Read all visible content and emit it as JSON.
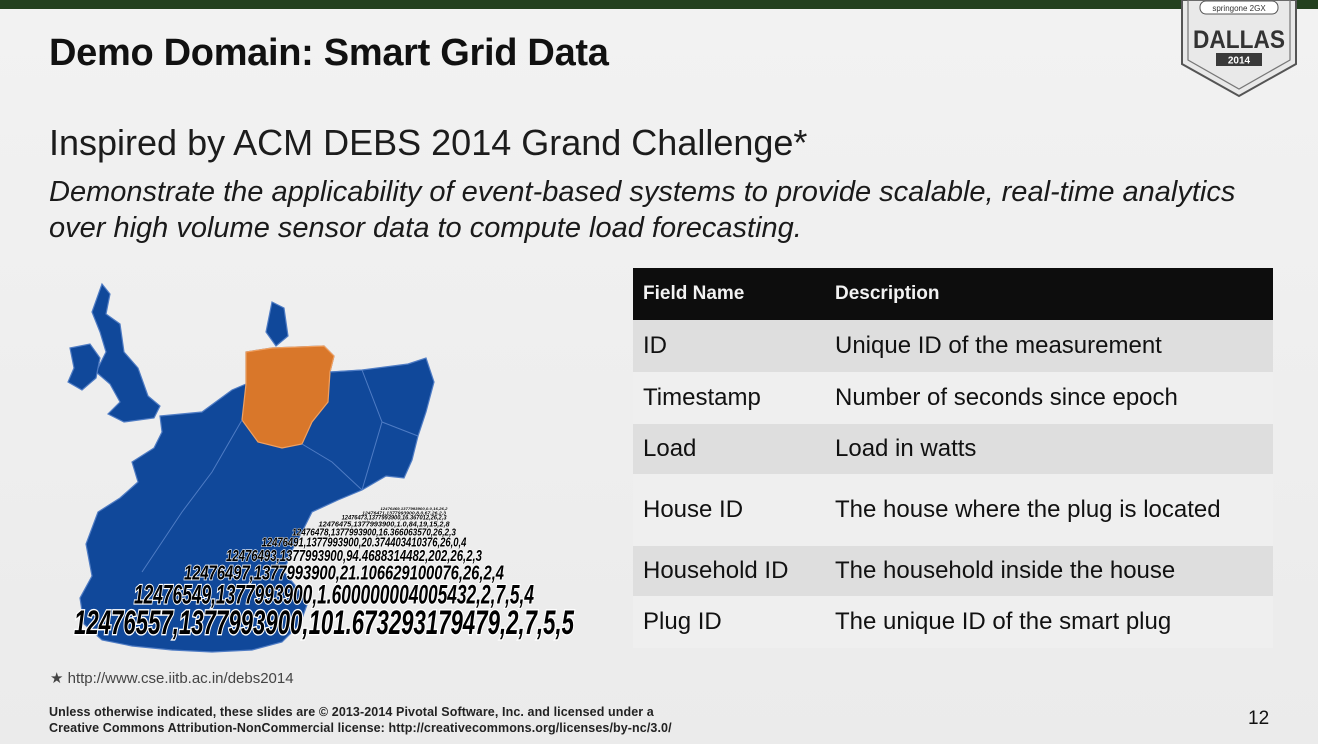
{
  "slide": {
    "title": "Demo Domain: Smart Grid Data",
    "subtitle": "Inspired by ACM DEBS 2014 Grand Challenge*",
    "description": "Demonstrate the applicability of event-based systems to provide scalable, real-time analytics over high volume sensor data to compute load forecasting.",
    "badge": {
      "top": "springone 2GX",
      "city": "DALLAS",
      "year": "2014"
    },
    "map_data_lines": [
      "12476557,1377993900,101.673293179479,2,7,5,5",
      "12476549,1377993900,1.600000004005432,2,7,5,4",
      "12476497,1377993900,21.106629100076,26,2,4",
      "12476493,1377993900,94.4688314482,202,26,2,3",
      "12476491,1377993900,20.374403410376,26,0,4",
      "12476478,1377993900,16.366063570,26,2,3",
      "12476475,1377993900,1.0,84,19,15,2,8",
      "12476473,1377993900,16.367012,26,2,3",
      "12476471,1377993900,8.0,67,26,2,3",
      "12476469,1377993900,0.0,16,26,2"
    ],
    "table": {
      "headers": [
        "Field Name",
        "Description"
      ],
      "rows": [
        [
          "ID",
          "Unique ID of the measurement"
        ],
        [
          "Timestamp",
          "Number of seconds since epoch"
        ],
        [
          "Load",
          "Load in watts"
        ],
        [
          "House ID",
          "The house where the plug is located"
        ],
        [
          "Household ID",
          "The household inside the house"
        ],
        [
          "Plug ID",
          "The unique ID of the smart plug"
        ]
      ]
    },
    "footnote": "http://www.cse.iitb.ac.in/debs2014",
    "footnote_mark": "★",
    "license": [
      "Unless otherwise indicated, these slides are © 2013-2014 Pivotal Software, Inc. and licensed under a",
      "Creative Commons Attribution-NonCommercial license: http://creativecommons.org/licenses/by-nc/3.0/"
    ],
    "page_number": "12",
    "colors": {
      "map_blue": "#10489a",
      "map_orange": "#d9772a",
      "header_bar": "#23401f"
    }
  }
}
